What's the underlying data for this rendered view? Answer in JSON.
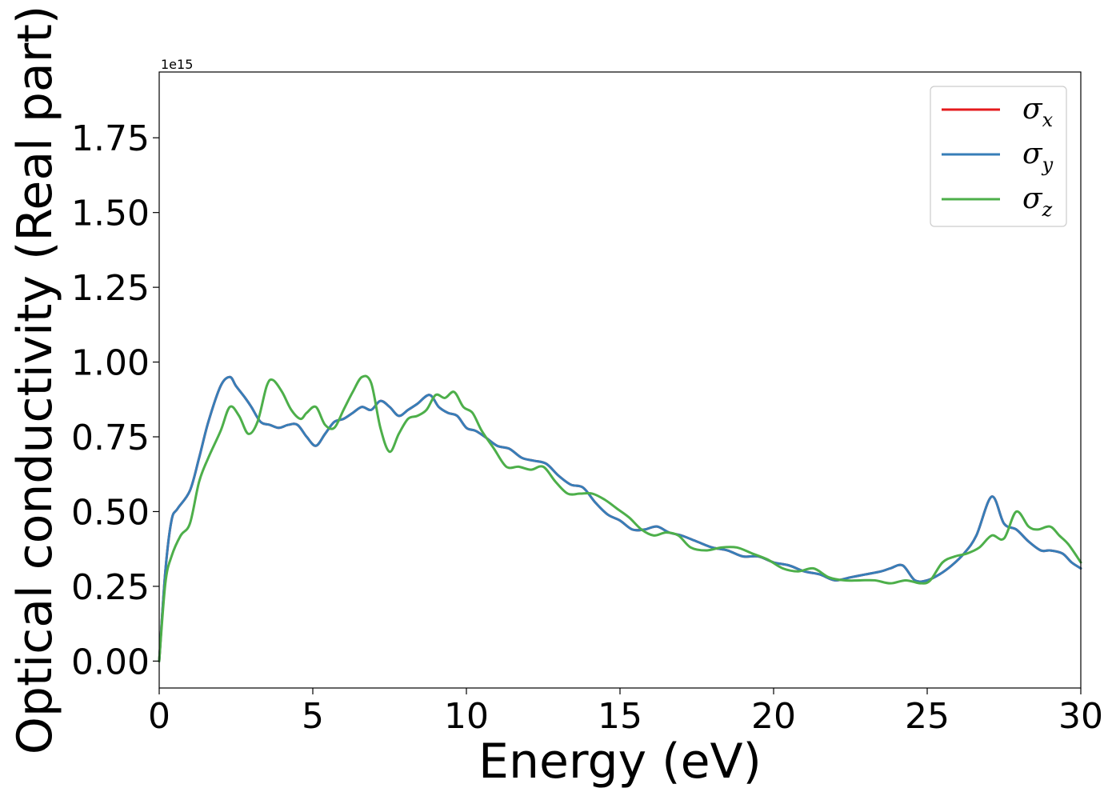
{
  "chart_data": {
    "type": "line",
    "xlabel": "Energy (eV)",
    "ylabel": "Optical conductivity (Real part)",
    "y_offset_label": "1e15",
    "xlim": [
      0,
      30
    ],
    "ylim": [
      -0.09,
      1.97
    ],
    "x_ticks": [
      0,
      5,
      10,
      15,
      20,
      25,
      30
    ],
    "x_tick_labels": [
      "0",
      "5",
      "10",
      "15",
      "20",
      "25",
      "30"
    ],
    "y_ticks": [
      0.0,
      0.25,
      0.5,
      0.75,
      1.0,
      1.25,
      1.5,
      1.75
    ],
    "y_tick_labels": [
      "0.00",
      "0.25",
      "0.50",
      "0.75",
      "1.00",
      "1.25",
      "1.50",
      "1.75"
    ],
    "grid": false,
    "legend_position": "top-right",
    "series": [
      {
        "name": "x",
        "symbol": "σ",
        "color": "#e41a1c",
        "x": [
          0,
          0.2,
          0.4,
          0.6,
          1.0,
          1.3,
          1.6,
          2.0,
          2.3,
          2.5,
          2.8,
          3.0,
          3.3,
          3.6,
          3.9,
          4.2,
          4.5,
          4.8,
          5.1,
          5.4,
          5.7,
          6.0,
          6.3,
          6.6,
          6.9,
          7.2,
          7.5,
          7.8,
          8.1,
          8.4,
          8.8,
          9.1,
          9.4,
          9.7,
          10.0,
          10.3,
          10.6,
          11.0,
          11.4,
          11.8,
          12.2,
          12.6,
          13.0,
          13.4,
          13.8,
          14.2,
          14.6,
          15.0,
          15.4,
          15.8,
          16.2,
          16.6,
          17.0,
          17.5,
          18.0,
          18.5,
          19.0,
          19.5,
          20.0,
          20.5,
          21.0,
          21.5,
          22.0,
          22.5,
          23.0,
          23.5,
          23.8,
          24.2,
          24.6,
          25.0,
          25.4,
          25.8,
          26.2,
          26.6,
          27.1,
          27.5,
          27.9,
          28.3,
          28.7,
          29.0,
          29.4,
          29.7,
          30.0
        ],
        "y": [
          0.0,
          0.3,
          0.47,
          0.51,
          0.57,
          0.68,
          0.8,
          0.92,
          0.95,
          0.92,
          0.88,
          0.85,
          0.8,
          0.79,
          0.78,
          0.79,
          0.79,
          0.75,
          0.72,
          0.76,
          0.8,
          0.81,
          0.83,
          0.85,
          0.84,
          0.87,
          0.85,
          0.82,
          0.84,
          0.86,
          0.89,
          0.85,
          0.83,
          0.82,
          0.78,
          0.77,
          0.75,
          0.72,
          0.71,
          0.68,
          0.67,
          0.66,
          0.62,
          0.59,
          0.58,
          0.53,
          0.49,
          0.47,
          0.44,
          0.44,
          0.45,
          0.43,
          0.42,
          0.4,
          0.38,
          0.37,
          0.35,
          0.35,
          0.33,
          0.32,
          0.3,
          0.29,
          0.27,
          0.28,
          0.29,
          0.3,
          0.31,
          0.32,
          0.27,
          0.27,
          0.29,
          0.32,
          0.36,
          0.42,
          0.55,
          0.46,
          0.44,
          0.4,
          0.37,
          0.37,
          0.36,
          0.33,
          0.31
        ]
      },
      {
        "name": "y",
        "symbol": "σ",
        "color": "#377eb8",
        "x": [
          0,
          0.2,
          0.4,
          0.6,
          1.0,
          1.3,
          1.6,
          2.0,
          2.3,
          2.5,
          2.8,
          3.0,
          3.3,
          3.6,
          3.9,
          4.2,
          4.5,
          4.8,
          5.1,
          5.4,
          5.7,
          6.0,
          6.3,
          6.6,
          6.9,
          7.2,
          7.5,
          7.8,
          8.1,
          8.4,
          8.8,
          9.1,
          9.4,
          9.7,
          10.0,
          10.3,
          10.6,
          11.0,
          11.4,
          11.8,
          12.2,
          12.6,
          13.0,
          13.4,
          13.8,
          14.2,
          14.6,
          15.0,
          15.4,
          15.8,
          16.2,
          16.6,
          17.0,
          17.5,
          18.0,
          18.5,
          19.0,
          19.5,
          20.0,
          20.5,
          21.0,
          21.5,
          22.0,
          22.5,
          23.0,
          23.5,
          23.8,
          24.2,
          24.6,
          25.0,
          25.4,
          25.8,
          26.2,
          26.6,
          27.1,
          27.5,
          27.9,
          28.3,
          28.7,
          29.0,
          29.4,
          29.7,
          30.0
        ],
        "y": [
          0.0,
          0.3,
          0.47,
          0.51,
          0.57,
          0.68,
          0.8,
          0.92,
          0.95,
          0.92,
          0.88,
          0.85,
          0.8,
          0.79,
          0.78,
          0.79,
          0.79,
          0.75,
          0.72,
          0.76,
          0.8,
          0.81,
          0.83,
          0.85,
          0.84,
          0.87,
          0.85,
          0.82,
          0.84,
          0.86,
          0.89,
          0.85,
          0.83,
          0.82,
          0.78,
          0.77,
          0.75,
          0.72,
          0.71,
          0.68,
          0.67,
          0.66,
          0.62,
          0.59,
          0.58,
          0.53,
          0.49,
          0.47,
          0.44,
          0.44,
          0.45,
          0.43,
          0.42,
          0.4,
          0.38,
          0.37,
          0.35,
          0.35,
          0.33,
          0.32,
          0.3,
          0.29,
          0.27,
          0.28,
          0.29,
          0.3,
          0.31,
          0.32,
          0.27,
          0.27,
          0.29,
          0.32,
          0.36,
          0.42,
          0.55,
          0.46,
          0.44,
          0.4,
          0.37,
          0.37,
          0.36,
          0.33,
          0.31
        ]
      },
      {
        "name": "z",
        "symbol": "σ",
        "color": "#4daf4a",
        "x": [
          0,
          0.2,
          0.4,
          0.7,
          1.0,
          1.3,
          1.6,
          2.0,
          2.3,
          2.6,
          2.9,
          3.2,
          3.5,
          3.7,
          4.0,
          4.3,
          4.6,
          4.8,
          5.1,
          5.4,
          5.7,
          6.0,
          6.3,
          6.6,
          6.9,
          7.2,
          7.5,
          7.8,
          8.1,
          8.4,
          8.7,
          9.0,
          9.3,
          9.6,
          9.9,
          10.2,
          10.5,
          10.9,
          11.3,
          11.7,
          12.1,
          12.5,
          12.9,
          13.3,
          13.7,
          14.1,
          14.5,
          14.9,
          15.3,
          15.7,
          16.1,
          16.5,
          16.9,
          17.3,
          17.8,
          18.3,
          18.8,
          19.3,
          19.8,
          20.3,
          20.8,
          21.3,
          21.8,
          22.3,
          22.8,
          23.3,
          23.8,
          24.3,
          24.8,
          25.1,
          25.5,
          25.9,
          26.3,
          26.7,
          27.1,
          27.5,
          27.9,
          28.3,
          28.6,
          29.0,
          29.3,
          29.6,
          30.0
        ],
        "y": [
          0.0,
          0.26,
          0.35,
          0.42,
          0.46,
          0.6,
          0.68,
          0.77,
          0.85,
          0.82,
          0.76,
          0.8,
          0.92,
          0.94,
          0.9,
          0.84,
          0.81,
          0.83,
          0.85,
          0.79,
          0.78,
          0.84,
          0.9,
          0.95,
          0.93,
          0.78,
          0.7,
          0.76,
          0.81,
          0.82,
          0.84,
          0.89,
          0.88,
          0.9,
          0.85,
          0.83,
          0.77,
          0.71,
          0.65,
          0.65,
          0.64,
          0.65,
          0.6,
          0.56,
          0.56,
          0.56,
          0.54,
          0.51,
          0.48,
          0.44,
          0.42,
          0.43,
          0.42,
          0.38,
          0.37,
          0.38,
          0.38,
          0.36,
          0.34,
          0.31,
          0.3,
          0.31,
          0.28,
          0.27,
          0.27,
          0.27,
          0.26,
          0.27,
          0.26,
          0.27,
          0.33,
          0.35,
          0.36,
          0.38,
          0.42,
          0.41,
          0.5,
          0.45,
          0.44,
          0.45,
          0.42,
          0.39,
          0.33
        ]
      }
    ]
  }
}
